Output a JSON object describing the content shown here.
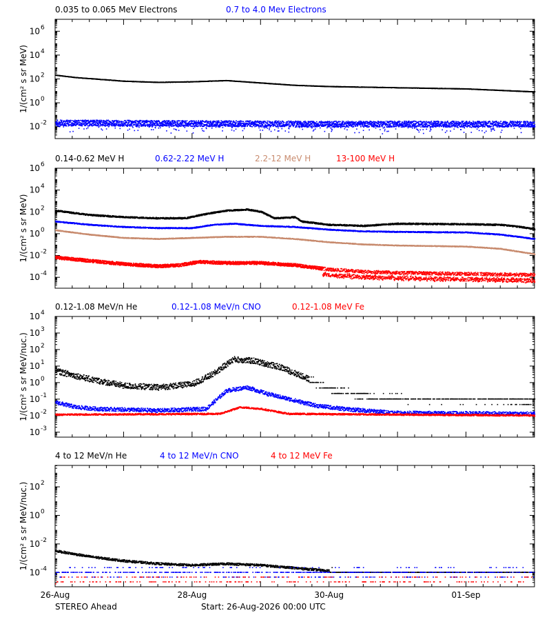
{
  "footer": {
    "spacecraft": "STEREO Ahead",
    "start": "Start: 26-Aug-2026 00:00 UTC"
  },
  "x_axis": {
    "tick_labels": [
      "26-Aug",
      "28-Aug",
      "30-Aug",
      "01-Sep"
    ],
    "range_days": [
      0,
      7
    ]
  },
  "colors": {
    "black": "#000000",
    "blue": "#0000ff",
    "tan": "#c88b6e",
    "red": "#ff0000"
  },
  "chart_data": [
    {
      "type": "scatter",
      "ylabel": "1/(cm² s sr MeV)",
      "y_scale": "log",
      "ylim_exp": [
        -3,
        7
      ],
      "y_ticks_exp": [
        -2,
        0,
        2,
        4,
        6
      ],
      "series": [
        {
          "name": "0.035 to 0.065 MeV Electrons",
          "color": "#000000",
          "noise": 0.015,
          "density": 4,
          "points": [
            [
              0,
              2.3
            ],
            [
              0.3,
              2.1
            ],
            [
              1,
              1.8
            ],
            [
              1.5,
              1.7
            ],
            [
              2,
              1.75
            ],
            [
              2.5,
              1.85
            ],
            [
              3,
              1.65
            ],
            [
              3.5,
              1.45
            ],
            [
              4,
              1.35
            ],
            [
              5,
              1.25
            ],
            [
              6,
              1.15
            ],
            [
              6.6,
              1.0
            ],
            [
              7,
              0.9
            ]
          ]
        },
        {
          "name": "0.7 to 4.0 Mev Electrons",
          "color": "#0000ff",
          "noise": 0.25,
          "density": 5,
          "downtail": true,
          "points": [
            [
              0,
              -1.7
            ],
            [
              2,
              -1.75
            ],
            [
              4,
              -1.8
            ],
            [
              7,
              -1.8
            ]
          ]
        }
      ]
    },
    {
      "type": "scatter",
      "ylabel": "1/(cm² s sr MeV)",
      "y_scale": "log",
      "ylim_exp": [
        -5,
        6
      ],
      "y_ticks_exp": [
        -4,
        -2,
        0,
        2,
        4,
        6
      ],
      "series": [
        {
          "name": "0.14-0.62 MeV H",
          "color": "#000000",
          "noise": 0.07,
          "density": 4,
          "points": [
            [
              0,
              2.1
            ],
            [
              0.5,
              1.7
            ],
            [
              1,
              1.5
            ],
            [
              1.5,
              1.4
            ],
            [
              1.9,
              1.4
            ],
            [
              2.2,
              1.8
            ],
            [
              2.5,
              2.1
            ],
            [
              2.8,
              2.2
            ],
            [
              3,
              2.0
            ],
            [
              3.2,
              1.4
            ],
            [
              3.5,
              1.5
            ],
            [
              3.6,
              1.1
            ],
            [
              4,
              0.8
            ],
            [
              4.5,
              0.7
            ],
            [
              5,
              0.9
            ],
            [
              6,
              0.85
            ],
            [
              6.5,
              0.8
            ],
            [
              6.8,
              0.6
            ],
            [
              7,
              0.4
            ]
          ]
        },
        {
          "name": "0.62-2.22 MeV H",
          "color": "#0000ff",
          "noise": 0.05,
          "density": 4,
          "points": [
            [
              0,
              1.1
            ],
            [
              0.5,
              0.8
            ],
            [
              1,
              0.6
            ],
            [
              1.5,
              0.5
            ],
            [
              2,
              0.5
            ],
            [
              2.3,
              0.8
            ],
            [
              2.6,
              0.9
            ],
            [
              3,
              0.7
            ],
            [
              3.5,
              0.6
            ],
            [
              4,
              0.35
            ],
            [
              4.5,
              0.2
            ],
            [
              5,
              0.15
            ],
            [
              6,
              0.1
            ],
            [
              6.5,
              -0.1
            ],
            [
              7,
              -0.5
            ]
          ]
        },
        {
          "name": "2.2-12 MeV H",
          "color": "#c88b6e",
          "noise": 0.04,
          "density": 4,
          "points": [
            [
              0,
              0.3
            ],
            [
              0.5,
              -0.1
            ],
            [
              1,
              -0.4
            ],
            [
              1.5,
              -0.5
            ],
            [
              2,
              -0.4
            ],
            [
              2.5,
              -0.3
            ],
            [
              3,
              -0.3
            ],
            [
              3.5,
              -0.5
            ],
            [
              4,
              -0.8
            ],
            [
              4.5,
              -1.0
            ],
            [
              5,
              -1.1
            ],
            [
              6,
              -1.2
            ],
            [
              6.5,
              -1.4
            ],
            [
              7,
              -1.9
            ]
          ]
        },
        {
          "name": "13-100 MeV H",
          "color": "#ff0000",
          "noise": 0.15,
          "density": 6,
          "split": 3.9,
          "points": [
            [
              0,
              -2.2
            ],
            [
              0.5,
              -2.5
            ],
            [
              1,
              -2.8
            ],
            [
              1.5,
              -3.0
            ],
            [
              1.8,
              -2.9
            ],
            [
              2.1,
              -2.6
            ],
            [
              2.5,
              -2.7
            ],
            [
              3,
              -2.7
            ],
            [
              3.5,
              -2.9
            ],
            [
              4,
              -3.3
            ],
            [
              4.5,
              -3.5
            ],
            [
              5,
              -3.6
            ],
            [
              6,
              -3.7
            ],
            [
              7,
              -3.8
            ]
          ]
        }
      ]
    },
    {
      "type": "scatter",
      "ylabel": "1/(cm² s sr MeV/nuc.)",
      "y_scale": "log",
      "ylim_exp": [
        -3.3,
        4
      ],
      "y_ticks_exp": [
        -3,
        -2,
        -1,
        0,
        1,
        2,
        3,
        4
      ],
      "series": [
        {
          "name": "0.12-1.08 MeV/n He",
          "color": "#000000",
          "noise": 0.18,
          "density": 3,
          "quantized_after": 3.7,
          "points": [
            [
              0,
              0.7
            ],
            [
              0.5,
              0.2
            ],
            [
              1,
              -0.2
            ],
            [
              1.5,
              -0.3
            ],
            [
              2,
              -0.1
            ],
            [
              2.3,
              0.5
            ],
            [
              2.6,
              1.4
            ],
            [
              2.9,
              1.3
            ],
            [
              3.3,
              0.9
            ],
            [
              3.7,
              0.2
            ],
            [
              4,
              -0.4
            ],
            [
              4.5,
              -0.8
            ],
            [
              5,
              -1.0
            ],
            [
              6,
              -1.0
            ],
            [
              7,
              -1.1
            ]
          ]
        },
        {
          "name": "0.12-1.08 MeV/n CNO",
          "color": "#0000ff",
          "noise": 0.12,
          "density": 3,
          "points": [
            [
              0,
              -1.2
            ],
            [
              0.3,
              -1.5
            ],
            [
              0.6,
              -1.6
            ],
            [
              1.5,
              -1.7
            ],
            [
              2.2,
              -1.6
            ],
            [
              2.5,
              -0.5
            ],
            [
              2.8,
              -0.3
            ],
            [
              3.1,
              -0.7
            ],
            [
              3.4,
              -1.0
            ],
            [
              3.8,
              -1.4
            ],
            [
              4.2,
              -1.6
            ],
            [
              5,
              -1.85
            ],
            [
              7,
              -1.9
            ]
          ]
        },
        {
          "name": "0.12-1.08 MeV Fe",
          "color": "#ff0000",
          "noise": 0.05,
          "density": 3,
          "points": [
            [
              0,
              -1.95
            ],
            [
              2.4,
              -1.9
            ],
            [
              2.7,
              -1.5
            ],
            [
              3.0,
              -1.6
            ],
            [
              3.4,
              -1.9
            ],
            [
              7,
              -2.0
            ]
          ]
        }
      ]
    },
    {
      "type": "scatter",
      "ylabel": "1/(cm² s sr MeV/nuc.)",
      "y_scale": "log",
      "ylim_exp": [
        -5,
        3.5
      ],
      "y_ticks_exp": [
        -4,
        -2,
        0,
        2
      ],
      "series": [
        {
          "name": "4 to 12 MeV/n He",
          "color": "#000000",
          "noise": 0.08,
          "density": 3,
          "quantized_after": 4.0,
          "points": [
            [
              0,
              -2.5
            ],
            [
              0.5,
              -2.9
            ],
            [
              1,
              -3.2
            ],
            [
              1.5,
              -3.4
            ],
            [
              2,
              -3.5
            ],
            [
              2.5,
              -3.4
            ],
            [
              3,
              -3.5
            ],
            [
              3.5,
              -3.7
            ],
            [
              4,
              -3.9
            ],
            [
              4.5,
              -4.0
            ],
            [
              5,
              -4.0
            ],
            [
              7,
              -4.0
            ]
          ]
        },
        {
          "name": "4 to 12 MeV/n CNO",
          "color": "#0000ff",
          "noise": 0.25,
          "density": 2,
          "quantized_after": 0,
          "points": [
            [
              0,
              -4.0
            ],
            [
              7,
              -4.0
            ]
          ]
        },
        {
          "name": "4 to 12 MeV Fe",
          "color": "#ff0000",
          "noise": 0.3,
          "density": 1,
          "quantized_after": 0,
          "points": [
            [
              0,
              -4.6
            ],
            [
              7,
              -4.6
            ]
          ]
        }
      ]
    }
  ]
}
